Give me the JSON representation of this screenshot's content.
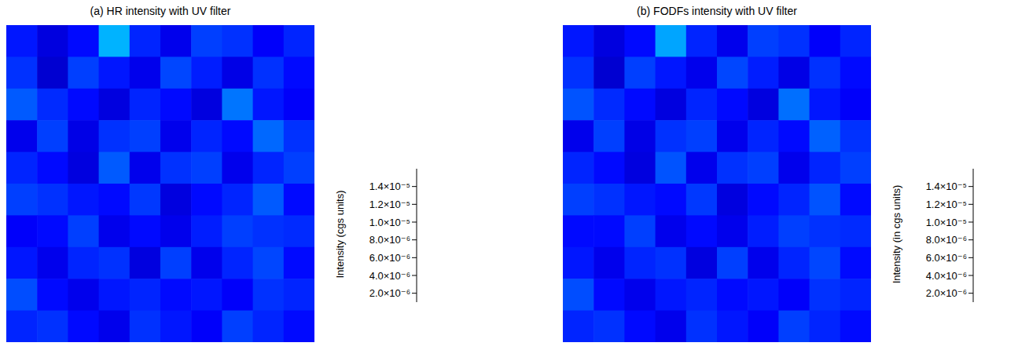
{
  "chart_data": [
    {
      "type": "heatmap",
      "title": "(a) HR intensity with UV filter",
      "colorbar_label": "Intensity (cgs units)",
      "tick_labels": false,
      "cells": [
        [
          3.2e-06,
          2.4e-06,
          3e-06,
          5.5e-06,
          3.4e-06,
          2.6e-06,
          3.8e-06,
          3.6e-06,
          2.8e-06,
          3.4e-06
        ],
        [
          3.6e-06,
          2.2e-06,
          3.8e-06,
          3.2e-06,
          2.6e-06,
          3.9e-06,
          3.3e-06,
          2.5e-06,
          3.6e-06,
          3e-06
        ],
        [
          4.2e-06,
          3.5e-06,
          3e-06,
          2.4e-06,
          3.4e-06,
          3e-06,
          2.4e-06,
          4.6e-06,
          3.2e-06,
          2.8e-06
        ],
        [
          2.6e-06,
          3.8e-06,
          2.5e-06,
          3.6e-06,
          3.8e-06,
          2.6e-06,
          3.4e-06,
          3e-06,
          4.4e-06,
          3.6e-06
        ],
        [
          3.4e-06,
          3e-06,
          2.4e-06,
          4.2e-06,
          2.6e-06,
          3.6e-06,
          3.8e-06,
          2.6e-06,
          3.4e-06,
          3.8e-06
        ],
        [
          3.8e-06,
          3.6e-06,
          3.2e-06,
          3e-06,
          3.7e-06,
          2.4e-06,
          3e-06,
          3.4e-06,
          4.2e-06,
          3e-06
        ],
        [
          2.8e-06,
          3e-06,
          3.8e-06,
          2.6e-06,
          3e-06,
          2.6e-06,
          3.3e-06,
          3.8e-06,
          3.6e-06,
          3.5e-06
        ],
        [
          3.2e-06,
          2.6e-06,
          3.4e-06,
          3.6e-06,
          2.4e-06,
          3.8e-06,
          2.6e-06,
          3.4e-06,
          3.9e-06,
          3e-06
        ],
        [
          4e-06,
          3e-06,
          2.6e-06,
          3.2e-06,
          3.4e-06,
          3e-06,
          3.2e-06,
          2.8e-06,
          3.6e-06,
          3.4e-06
        ],
        [
          3.4e-06,
          3.6e-06,
          3e-06,
          2.6e-06,
          3.6e-06,
          3.2e-06,
          2.8e-06,
          3.8e-06,
          3.4e-06,
          3e-06
        ]
      ],
      "colorbar_lim": [
        1e-06,
        1.6e-05
      ],
      "colorbar_ticks": [
        {
          "value": 2e-06,
          "label": "2.0×10⁻⁶"
        },
        {
          "value": 4e-06,
          "label": "4.0×10⁻⁶"
        },
        {
          "value": 6e-06,
          "label": "6.0×10⁻⁶"
        },
        {
          "value": 8e-06,
          "label": "8.0×10⁻⁶"
        },
        {
          "value": 1e-05,
          "label": "1.0×10⁻⁵"
        },
        {
          "value": 1.2e-05,
          "label": "1.2×10⁻⁵"
        },
        {
          "value": 1.4e-05,
          "label": "1.4×10⁻⁵"
        }
      ]
    },
    {
      "type": "heatmap",
      "title": "(b) FODFs intensity with UV filter",
      "colorbar_label": "Intensity (in cgs units)",
      "tick_labels": false,
      "cells": [
        [
          3.2e-06,
          2.4e-06,
          3e-06,
          5.3e-06,
          3.4e-06,
          2.6e-06,
          3.8e-06,
          3.6e-06,
          2.8e-06,
          3.4e-06
        ],
        [
          3.6e-06,
          2.2e-06,
          3.8e-06,
          3.2e-06,
          2.6e-06,
          3.9e-06,
          3.3e-06,
          2.5e-06,
          3.6e-06,
          3e-06
        ],
        [
          4.1e-06,
          3.5e-06,
          3e-06,
          2.4e-06,
          3.4e-06,
          3e-06,
          2.4e-06,
          4.5e-06,
          3.2e-06,
          2.8e-06
        ],
        [
          2.6e-06,
          3.8e-06,
          2.5e-06,
          3.6e-06,
          3.8e-06,
          2.6e-06,
          3.4e-06,
          3e-06,
          4.3e-06,
          3.6e-06
        ],
        [
          3.4e-06,
          3e-06,
          2.4e-06,
          4.1e-06,
          2.6e-06,
          3.6e-06,
          3.8e-06,
          2.6e-06,
          3.4e-06,
          3.8e-06
        ],
        [
          3.8e-06,
          3.6e-06,
          3.2e-06,
          3e-06,
          3.7e-06,
          2.4e-06,
          3e-06,
          3.4e-06,
          4.1e-06,
          3e-06
        ],
        [
          3e-06,
          3e-06,
          3.8e-06,
          2.6e-06,
          3e-06,
          2.6e-06,
          3.3e-06,
          3.8e-06,
          3.6e-06,
          3.5e-06
        ],
        [
          3.2e-06,
          2.6e-06,
          3.4e-06,
          3.6e-06,
          2.4e-06,
          3.8e-06,
          2.6e-06,
          3.4e-06,
          3.9e-06,
          3e-06
        ],
        [
          4e-06,
          3e-06,
          2.6e-06,
          3.2e-06,
          3.4e-06,
          3e-06,
          3.2e-06,
          2.8e-06,
          3.6e-06,
          3.4e-06
        ],
        [
          3.4e-06,
          3.6e-06,
          3e-06,
          2.6e-06,
          3.6e-06,
          3.2e-06,
          2.8e-06,
          3.8e-06,
          3.4e-06,
          3e-06
        ]
      ],
      "colorbar_lim": [
        1e-06,
        1.6e-05
      ],
      "colorbar_ticks": [
        {
          "value": 2e-06,
          "label": "2.0×10⁻⁶"
        },
        {
          "value": 4e-06,
          "label": "4.0×10⁻⁶"
        },
        {
          "value": 6e-06,
          "label": "6.0×10⁻⁶"
        },
        {
          "value": 8e-06,
          "label": "8.0×10⁻⁶"
        },
        {
          "value": 1e-05,
          "label": "1.0×10⁻⁵"
        },
        {
          "value": 1.2e-05,
          "label": "1.2×10⁻⁵"
        },
        {
          "value": 1.4e-05,
          "label": "1.4×10⁻⁵"
        }
      ]
    }
  ]
}
